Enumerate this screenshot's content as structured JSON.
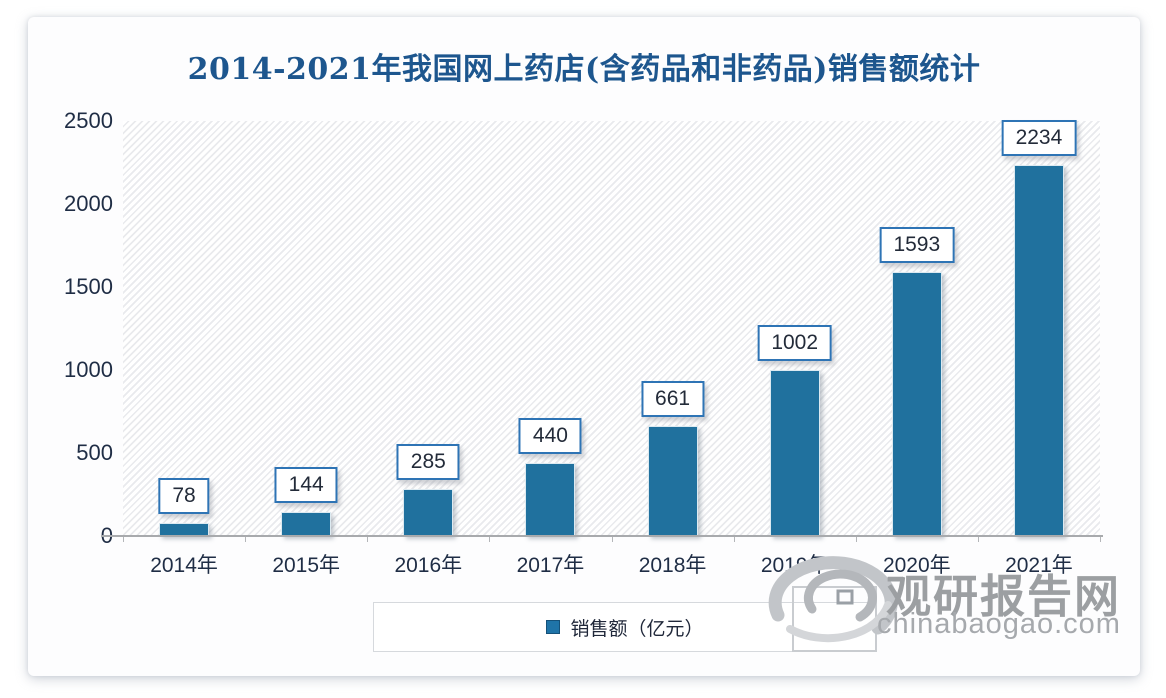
{
  "watermark": {
    "brand": "观研报告网",
    "url": "chinabaogao.com"
  },
  "chart_data": {
    "type": "bar",
    "title": "2014-2021年我国网上药店(含药品和非药品)销售额统计",
    "categories": [
      "2014年",
      "2015年",
      "2016年",
      "2017年",
      "2018年",
      "2019年",
      "2020年",
      "2021年"
    ],
    "series": [
      {
        "name": "销售额（亿元）",
        "values": [
          78,
          144,
          285,
          440,
          661,
          1002,
          1593,
          2234
        ]
      }
    ],
    "legend": [
      "销售额（亿元）"
    ],
    "legend_position": "bottom",
    "xlabel": "",
    "ylabel": "",
    "ylim": [
      0,
      2500
    ],
    "yticks": [
      0,
      500,
      1000,
      1500,
      2000,
      2500
    ],
    "grid": false,
    "plot_background": "light-diagonal-hatch",
    "data_labels": "boxed-above-bars",
    "colors": {
      "bar": "#20719e",
      "title_text": "#1d568e",
      "label_border": "#2e74b5",
      "label_text": "#232b39",
      "axis_text": "#1f2d45",
      "axis_line": "#a8aaad",
      "hatch_line": "#e9eaed",
      "watermark_text": "#9c9fa2"
    }
  }
}
